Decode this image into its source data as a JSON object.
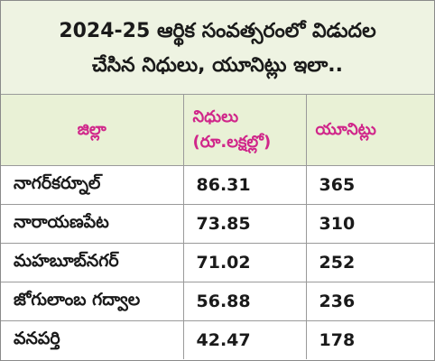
{
  "title": {
    "line1": "2024-25 ఆర్థిక సంవత్సరంలో విడుదల",
    "line2": "చేసిన నిధులు, యూనిట్లు ఇలా.."
  },
  "table": {
    "headers": {
      "district": "జిల్లా",
      "funds_line1": "నిధులు",
      "funds_line2": "(రూ.లక్షల్లో)",
      "units": "యూనిట్లు"
    },
    "rows": [
      {
        "district": "నాగర్‌కర్నూల్",
        "funds": "86.31",
        "units": "365"
      },
      {
        "district": "నారాయణపేట",
        "funds": "73.85",
        "units": "310"
      },
      {
        "district": "మహబూబ్‌నగర్",
        "funds": "71.02",
        "units": "252"
      },
      {
        "district": "జోగులాంబ గద్వాల",
        "funds": "56.88",
        "units": "236"
      },
      {
        "district": "వనపర్తి",
        "funds": "42.47",
        "units": "178"
      }
    ]
  },
  "colors": {
    "header_text": "#d0268a",
    "header_bg": "#e9f1d6",
    "title_bg": "#eef3e2",
    "body_text": "#1a1a1a"
  }
}
